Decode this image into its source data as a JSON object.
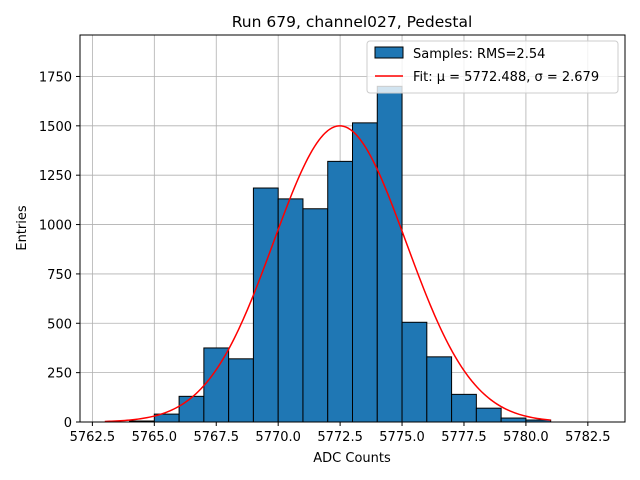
{
  "chart_data": {
    "type": "bar",
    "title": "Run 679, channel027, Pedestal",
    "xlabel": "ADC Counts",
    "ylabel": "Entries",
    "xlim": [
      5762.0,
      5784.0
    ],
    "ylim": [
      0,
      1960
    ],
    "grid": true,
    "legend_placement": "top-right",
    "xticks": [
      5762.5,
      5765.0,
      5767.5,
      5770.0,
      5772.5,
      5775.0,
      5777.5,
      5780.0,
      5782.5
    ],
    "xtick_labels": [
      "5762.5",
      "5765.0",
      "5767.5",
      "5770.0",
      "5772.5",
      "5775.0",
      "5777.5",
      "5780.0",
      "5782.5"
    ],
    "yticks": [
      0,
      250,
      500,
      750,
      1000,
      1250,
      1500,
      1750
    ],
    "ytick_labels": [
      "0",
      "250",
      "500",
      "750",
      "1000",
      "1250",
      "1500",
      "1750"
    ],
    "histogram": {
      "name": "Samples: RMS=2.54",
      "color": "#1f77b4",
      "edge_color": "#000000",
      "bins": [
        {
          "x0": 5763,
          "x1": 5764,
          "count": 0
        },
        {
          "x0": 5764,
          "x1": 5765,
          "count": 5
        },
        {
          "x0": 5765,
          "x1": 5766,
          "count": 40
        },
        {
          "x0": 5766,
          "x1": 5767,
          "count": 130
        },
        {
          "x0": 5767,
          "x1": 5768,
          "count": 375
        },
        {
          "x0": 5768,
          "x1": 5769,
          "count": 320
        },
        {
          "x0": 5769,
          "x1": 5770,
          "count": 1185
        },
        {
          "x0": 5770,
          "x1": 5771,
          "count": 1130
        },
        {
          "x0": 5771,
          "x1": 5772,
          "count": 1080
        },
        {
          "x0": 5772,
          "x1": 5773,
          "count": 1320
        },
        {
          "x0": 5773,
          "x1": 5774,
          "count": 1515
        },
        {
          "x0": 5774,
          "x1": 5775,
          "count": 1700
        },
        {
          "x0": 5775,
          "x1": 5776,
          "count": 505
        },
        {
          "x0": 5776,
          "x1": 5777,
          "count": 330
        },
        {
          "x0": 5777,
          "x1": 5778,
          "count": 140
        },
        {
          "x0": 5778,
          "x1": 5779,
          "count": 70
        },
        {
          "x0": 5779,
          "x1": 5780,
          "count": 20
        },
        {
          "x0": 5780,
          "x1": 5781,
          "count": 10
        }
      ]
    },
    "fit": {
      "name": "Fit: μ = 5772.488, σ = 2.679",
      "color": "#ff0000",
      "mu": 5772.488,
      "sigma": 2.679,
      "amplitude": 1500,
      "x_range": [
        5763,
        5781
      ]
    }
  }
}
